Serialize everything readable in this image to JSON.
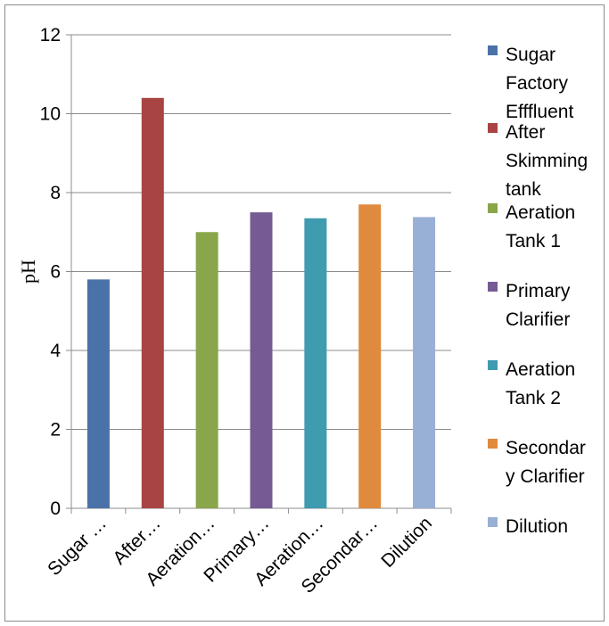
{
  "chart_data": {
    "type": "bar",
    "title": "",
    "xlabel": "",
    "ylabel": "pH",
    "ylim": [
      0,
      12
    ],
    "yticks": [
      0,
      2,
      4,
      6,
      8,
      10,
      12
    ],
    "grid": true,
    "legend_position": "right",
    "categories": [
      "Sugar …",
      "After…",
      "Aeration…",
      "Primary…",
      "Aeration…",
      "Secondar…",
      "Dilution"
    ],
    "series": [
      {
        "name": "Sugar Factory Effluent",
        "legend_lines": [
          "Sugar",
          "Factory",
          "Efffluent"
        ],
        "value": 5.8,
        "color": "#4a72a8"
      },
      {
        "name": "After Skimming tank",
        "legend_lines": [
          "After",
          "Skimming",
          "tank"
        ],
        "value": 10.4,
        "color": "#a84444"
      },
      {
        "name": "Aeration Tank 1",
        "legend_lines": [
          "Aeration",
          "Tank 1"
        ],
        "value": 7.0,
        "color": "#89a64a"
      },
      {
        "name": "Primary Clarifier",
        "legend_lines": [
          "Primary",
          "Clarifier"
        ],
        "value": 7.5,
        "color": "#755a93"
      },
      {
        "name": "Aeration Tank 2",
        "legend_lines": [
          "Aeration",
          "Tank 2"
        ],
        "value": 7.35,
        "color": "#3f9bb0"
      },
      {
        "name": "Secondary Clarifier",
        "legend_lines": [
          "Secondar",
          "y Clarifier"
        ],
        "value": 7.7,
        "color": "#e08a3e"
      },
      {
        "name": "Dilution",
        "legend_lines": [
          "Dilution"
        ],
        "value": 7.38,
        "color": "#98afd6"
      }
    ]
  }
}
